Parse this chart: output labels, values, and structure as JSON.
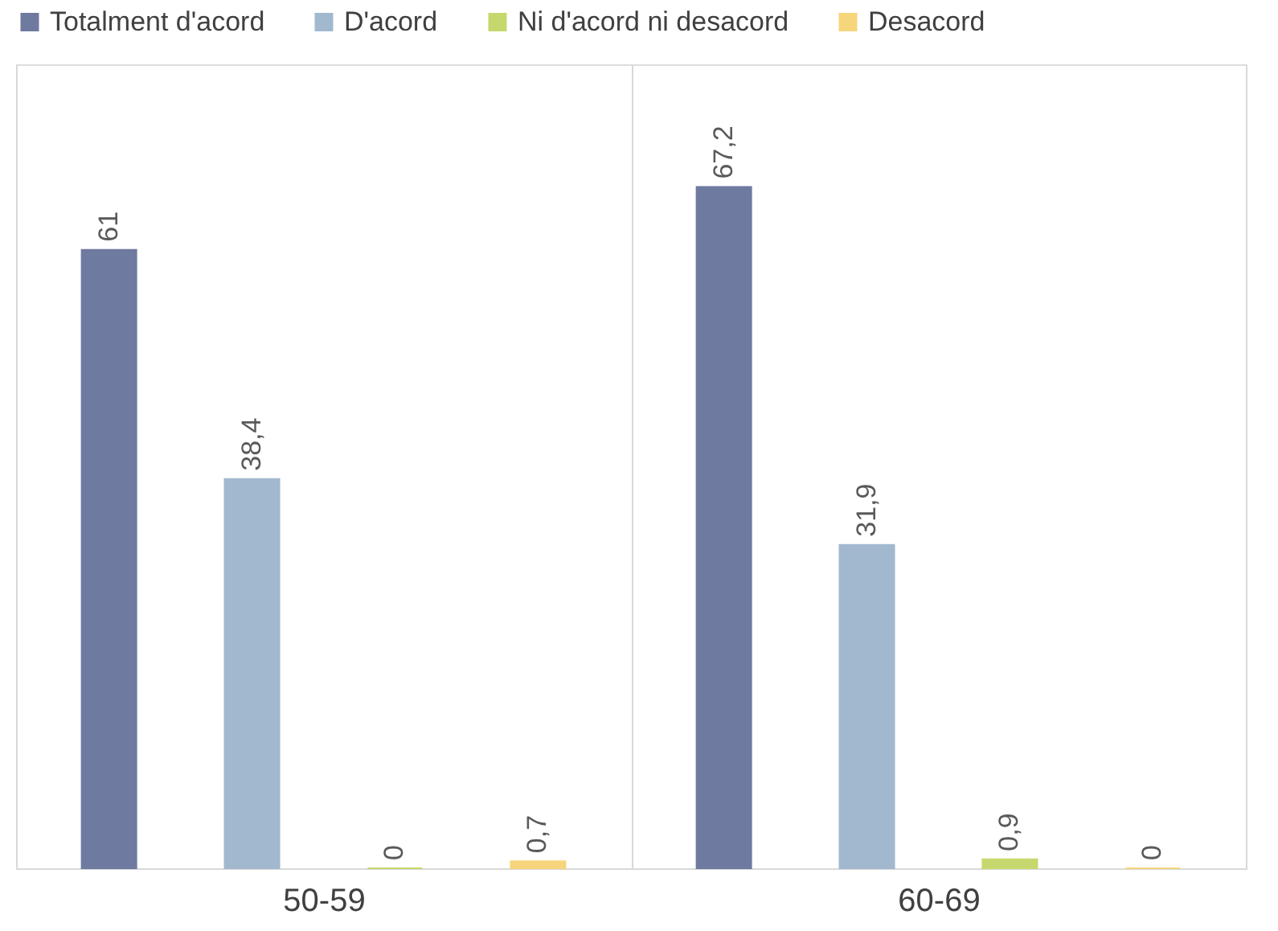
{
  "chart_data": {
    "type": "bar",
    "categories": [
      "50-59",
      "60-69"
    ],
    "series": [
      {
        "name": "Totalment d'acord",
        "color": "#6f7aa0",
        "values": [
          61,
          67.2
        ],
        "value_labels": [
          "61",
          "67,2"
        ]
      },
      {
        "name": "D'acord",
        "color": "#a2b8cf",
        "values": [
          38.4,
          31.9
        ],
        "value_labels": [
          "38,4",
          "31,9"
        ]
      },
      {
        "name": "Ni d'acord ni desacord",
        "color": "#c5d86d",
        "values": [
          0,
          0.9
        ],
        "value_labels": [
          "0",
          "0,9"
        ]
      },
      {
        "name": "Desacord",
        "color": "#f6d57c",
        "values": [
          0.7,
          0
        ],
        "value_labels": [
          "0,7",
          "0"
        ]
      }
    ],
    "legend": "top",
    "grid": "x"
  }
}
